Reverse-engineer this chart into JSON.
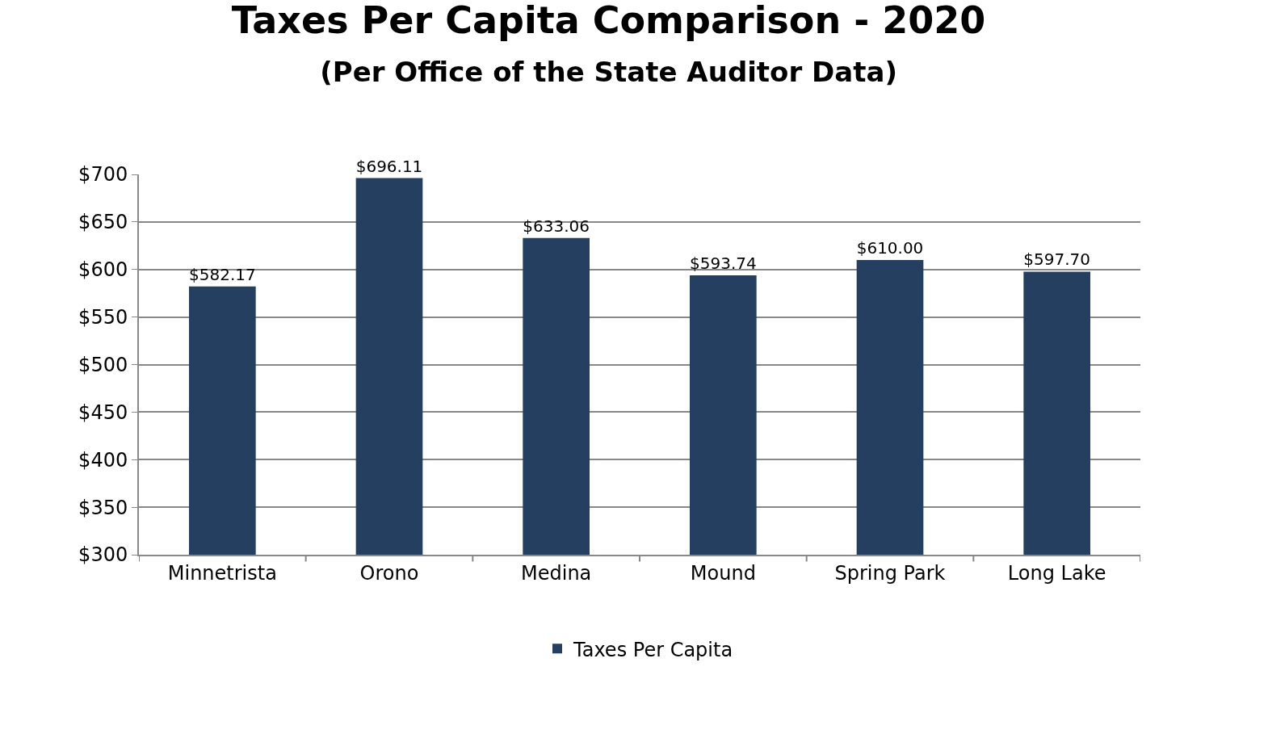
{
  "chart_data": {
    "type": "bar",
    "title": "Taxes Per Capita Comparison - 2020",
    "subtitle": "(Per Office of the State Auditor Data)",
    "categories": [
      "Minnetrista",
      "Orono",
      "Medina",
      "Mound",
      "Spring Park",
      "Long Lake"
    ],
    "series": [
      {
        "name": "Taxes Per Capita",
        "color": "#243f60",
        "values": [
          582.17,
          696.11,
          633.06,
          593.74,
          610.0,
          597.7
        ],
        "value_labels": [
          "$582.17",
          "$696.11",
          "$633.06",
          "$593.74",
          "$610.00",
          "$597.70"
        ]
      }
    ],
    "ylim": [
      300,
      700
    ],
    "yticks": [
      {
        "value": 300,
        "label": "$300"
      },
      {
        "value": 350,
        "label": "$350"
      },
      {
        "value": 400,
        "label": "$400"
      },
      {
        "value": 450,
        "label": "$450"
      },
      {
        "value": 500,
        "label": "$500"
      },
      {
        "value": 550,
        "label": "$550"
      },
      {
        "value": 600,
        "label": "$600"
      },
      {
        "value": 650,
        "label": "$650"
      },
      {
        "value": 700,
        "label": "$700"
      }
    ],
    "grid": "y",
    "legend": "bottom"
  }
}
